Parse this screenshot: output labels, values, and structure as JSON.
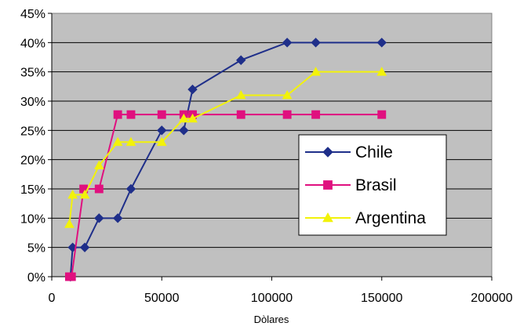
{
  "chart_data": {
    "type": "line",
    "title": "",
    "xlabel": "Dòlares",
    "ylabel": "",
    "xlim": [
      0,
      200000
    ],
    "ylim": [
      0,
      45
    ],
    "x_ticks": [
      "0",
      "50000",
      "100000",
      "150000",
      "200000"
    ],
    "y_ticks": [
      "0%",
      "5%",
      "10%",
      "15%",
      "20%",
      "25%",
      "30%",
      "35%",
      "40%",
      "45%"
    ],
    "grid": "horizontal",
    "plot_background": "#c0c0c0",
    "legend_position": "right",
    "series": [
      {
        "name": "Chile",
        "color": "#1f2f8a",
        "marker": "diamond",
        "points": [
          [
            8500,
            0
          ],
          [
            9500,
            5
          ],
          [
            15000,
            5
          ],
          [
            21500,
            10
          ],
          [
            30000,
            10
          ],
          [
            36000,
            15
          ],
          [
            50000,
            25
          ],
          [
            60000,
            25
          ],
          [
            64000,
            32
          ],
          [
            86000,
            37
          ],
          [
            107000,
            40
          ],
          [
            120000,
            40
          ],
          [
            150000,
            40
          ]
        ]
      },
      {
        "name": "Brasil",
        "color": "#e0107f",
        "marker": "square",
        "points": [
          [
            8000,
            0
          ],
          [
            9000,
            0
          ],
          [
            14500,
            15
          ],
          [
            21500,
            15
          ],
          [
            30000,
            27.7
          ],
          [
            36000,
            27.7
          ],
          [
            50000,
            27.7
          ],
          [
            60000,
            27.7
          ],
          [
            64000,
            27.7
          ],
          [
            86000,
            27.7
          ],
          [
            107000,
            27.7
          ],
          [
            120000,
            27.7
          ],
          [
            150000,
            27.7
          ]
        ]
      },
      {
        "name": "Argentina",
        "color": "#f2f20a",
        "marker": "triangle",
        "points": [
          [
            8000,
            9
          ],
          [
            9500,
            14
          ],
          [
            15000,
            14
          ],
          [
            21500,
            19
          ],
          [
            30000,
            23
          ],
          [
            36000,
            23
          ],
          [
            50000,
            23
          ],
          [
            60000,
            27
          ],
          [
            64000,
            27
          ],
          [
            86000,
            31
          ],
          [
            107000,
            31
          ],
          [
            120000,
            35
          ],
          [
            150000,
            35
          ]
        ]
      }
    ]
  }
}
